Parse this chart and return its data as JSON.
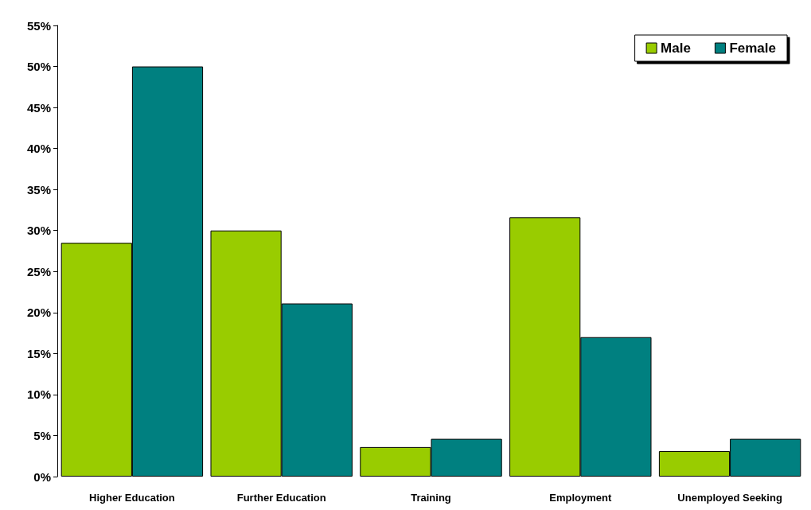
{
  "chart_data": {
    "type": "bar",
    "categories": [
      "Higher Education",
      "Further Education",
      "Training",
      "Employment",
      "Unemployed Seeking"
    ],
    "series": [
      {
        "name": "Male",
        "color": "#99cc00",
        "values": [
          28.5,
          30,
          3.6,
          31.6,
          3.1
        ]
      },
      {
        "name": "Female",
        "color": "#008080",
        "values": [
          50,
          21.1,
          4.6,
          17,
          4.6
        ]
      }
    ],
    "ylim": [
      0,
      55
    ],
    "yticks": [
      {
        "value": 0,
        "label": "0%"
      },
      {
        "value": 5,
        "label": "5%"
      },
      {
        "value": 10,
        "label": "10%"
      },
      {
        "value": 15,
        "label": "15%"
      },
      {
        "value": 20,
        "label": "20%"
      },
      {
        "value": 25,
        "label": "25%"
      },
      {
        "value": 30,
        "label": "30%"
      },
      {
        "value": 35,
        "label": "35%"
      },
      {
        "value": 40,
        "label": "40%"
      },
      {
        "value": 45,
        "label": "45%"
      },
      {
        "value": 50,
        "label": "50%"
      },
      {
        "value": 55,
        "label": "55%"
      }
    ],
    "grid": false,
    "legend": "top right"
  }
}
